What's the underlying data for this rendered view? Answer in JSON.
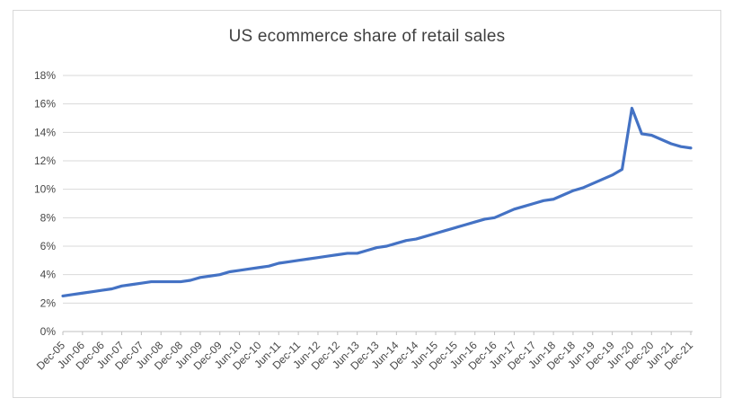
{
  "chart": {
    "title": "US ecommerce share of retail sales",
    "colors": {
      "line": "#4472C4",
      "gridline": "#D9D9D9",
      "axis_line": "#BFBFBF",
      "label_text": "#474747",
      "title_text": "#404040",
      "frame_border": "#D9D9D9",
      "background": "#FFFFFF"
    }
  },
  "chart_data": {
    "type": "line",
    "title": "US ecommerce share of retail sales",
    "xlabel": "",
    "ylabel": "",
    "ylim": [
      0,
      18
    ],
    "y_tick_step": 2,
    "grid": true,
    "legend": false,
    "y_tick_labels": [
      "0%",
      "2%",
      "4%",
      "6%",
      "8%",
      "10%",
      "12%",
      "14%",
      "16%",
      "18%"
    ],
    "x_tick_labels": [
      "Dec-05",
      "Jun-06",
      "Dec-06",
      "Jun-07",
      "Dec-07",
      "Jun-08",
      "Dec-08",
      "Jun-09",
      "Dec-09",
      "Jun-10",
      "Dec-10",
      "Jun-11",
      "Dec-11",
      "Jun-12",
      "Dec-12",
      "Jun-13",
      "Dec-13",
      "Jun-14",
      "Dec-14",
      "Jun-15",
      "Dec-15",
      "Jun-16",
      "Dec-16",
      "Jun-17",
      "Dec-17",
      "Jun-18",
      "Dec-18",
      "Jun-19",
      "Dec-19",
      "Jun-20",
      "Dec-20",
      "Jun-21",
      "Dec-21"
    ],
    "x": [
      "Dec-05",
      "Mar-06",
      "Jun-06",
      "Sep-06",
      "Dec-06",
      "Mar-07",
      "Jun-07",
      "Sep-07",
      "Dec-07",
      "Mar-08",
      "Jun-08",
      "Sep-08",
      "Dec-08",
      "Mar-09",
      "Jun-09",
      "Sep-09",
      "Dec-09",
      "Mar-10",
      "Jun-10",
      "Sep-10",
      "Dec-10",
      "Mar-11",
      "Jun-11",
      "Sep-11",
      "Dec-11",
      "Mar-12",
      "Jun-12",
      "Sep-12",
      "Dec-12",
      "Mar-13",
      "Jun-13",
      "Sep-13",
      "Dec-13",
      "Mar-14",
      "Jun-14",
      "Sep-14",
      "Dec-14",
      "Mar-15",
      "Jun-15",
      "Sep-15",
      "Dec-15",
      "Mar-16",
      "Jun-16",
      "Sep-16",
      "Dec-16",
      "Mar-17",
      "Jun-17",
      "Sep-17",
      "Dec-17",
      "Mar-18",
      "Jun-18",
      "Sep-18",
      "Dec-18",
      "Mar-19",
      "Jun-19",
      "Sep-19",
      "Dec-19",
      "Mar-20",
      "Jun-20",
      "Sep-20",
      "Dec-20",
      "Mar-21",
      "Jun-21",
      "Sep-21",
      "Dec-21"
    ],
    "series": [
      {
        "name": "US ecommerce share of retail sales",
        "values": [
          2.5,
          2.6,
          2.7,
          2.8,
          2.9,
          3.0,
          3.2,
          3.3,
          3.4,
          3.5,
          3.5,
          3.5,
          3.5,
          3.6,
          3.8,
          3.9,
          4.0,
          4.2,
          4.3,
          4.4,
          4.5,
          4.6,
          4.8,
          4.9,
          5.0,
          5.1,
          5.2,
          5.3,
          5.4,
          5.5,
          5.5,
          5.7,
          5.9,
          6.0,
          6.2,
          6.4,
          6.5,
          6.7,
          6.9,
          7.1,
          7.3,
          7.5,
          7.7,
          7.9,
          8.0,
          8.3,
          8.6,
          8.8,
          9.0,
          9.2,
          9.3,
          9.6,
          9.9,
          10.1,
          10.4,
          10.7,
          11.0,
          11.4,
          15.7,
          13.9,
          13.8,
          13.5,
          13.2,
          13.0,
          12.9
        ]
      }
    ]
  }
}
